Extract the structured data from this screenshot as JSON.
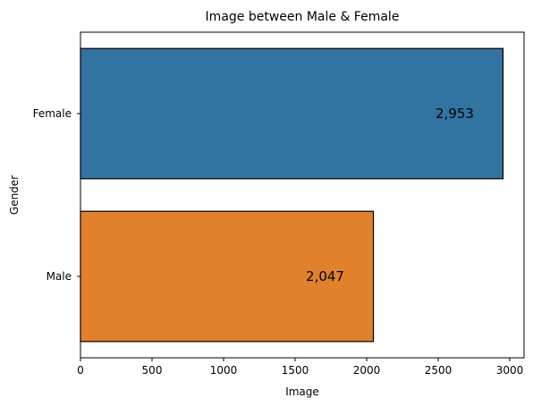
{
  "chart_data": {
    "type": "bar",
    "orientation": "horizontal",
    "title": "Image between Male & Female",
    "xlabel": "Image",
    "ylabel": "Gender",
    "categories": [
      "Female",
      "Male"
    ],
    "values": [
      2953,
      2047
    ],
    "data_labels": [
      "2,953",
      "2,047"
    ],
    "colors": [
      "#3274a1",
      "#e1812c"
    ],
    "xlim": [
      0,
      3100
    ],
    "xticks": [
      0,
      500,
      1000,
      1500,
      2000,
      2500,
      3000
    ],
    "xtick_labels": [
      "0",
      "500",
      "1000",
      "1500",
      "2000",
      "2500",
      "3000"
    ],
    "grid": false,
    "legend": "none"
  }
}
